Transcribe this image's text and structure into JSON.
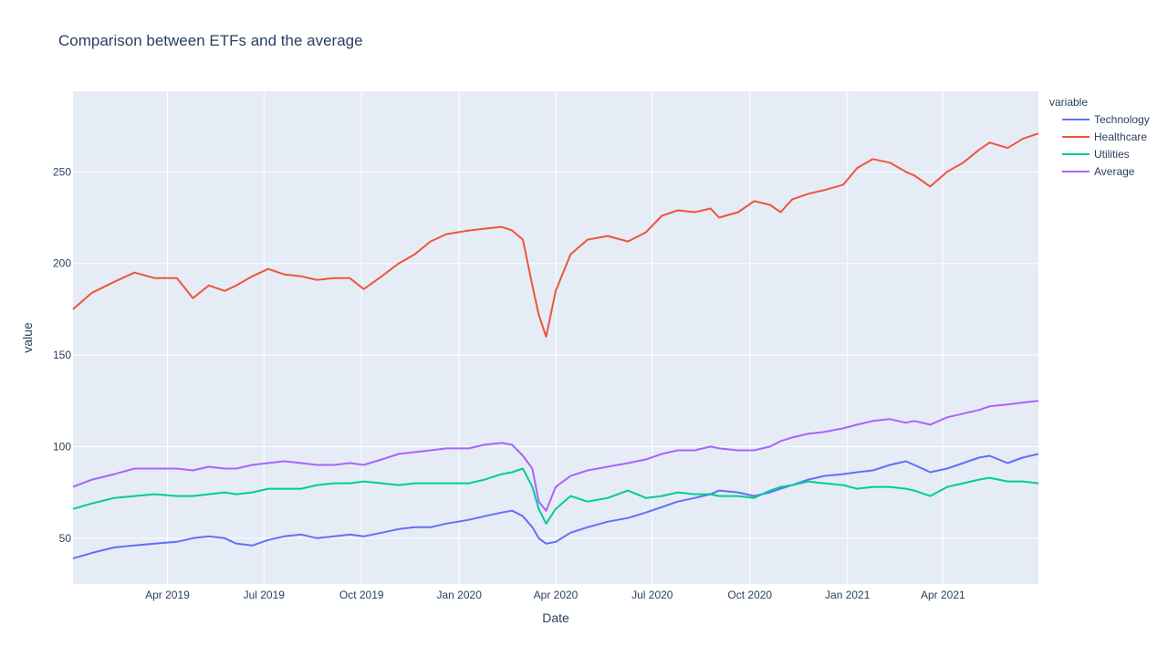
{
  "chart_data": {
    "type": "line",
    "title": "Comparison between ETFs and the average",
    "xlabel": "Date",
    "ylabel": "value",
    "legend_title": "variable",
    "legend_position": "right",
    "grid": true,
    "xlim": [
      "2019-01-02",
      "2021-06-30"
    ],
    "ylim": [
      25,
      294
    ],
    "x_ticks": [
      "Apr 2019",
      "Jul 2019",
      "Oct 2019",
      "Jan 2020",
      "Apr 2020",
      "Jul 2020",
      "Oct 2020",
      "Jan 2021",
      "Apr 2021"
    ],
    "x_tick_dates": [
      "2019-04-01",
      "2019-07-01",
      "2019-10-01",
      "2020-01-01",
      "2020-04-01",
      "2020-07-01",
      "2020-10-01",
      "2021-01-01",
      "2021-04-01"
    ],
    "y_ticks": [
      50,
      100,
      150,
      200,
      250
    ],
    "x": [
      "2019-01-02",
      "2019-01-20",
      "2019-02-10",
      "2019-03-01",
      "2019-03-20",
      "2019-04-10",
      "2019-04-25",
      "2019-05-10",
      "2019-05-25",
      "2019-06-05",
      "2019-06-20",
      "2019-07-05",
      "2019-07-20",
      "2019-08-05",
      "2019-08-20",
      "2019-09-05",
      "2019-09-20",
      "2019-10-03",
      "2019-10-20",
      "2019-11-05",
      "2019-11-20",
      "2019-12-05",
      "2019-12-20",
      "2020-01-10",
      "2020-01-25",
      "2020-02-10",
      "2020-02-20",
      "2020-03-01",
      "2020-03-10",
      "2020-03-16",
      "2020-03-23",
      "2020-04-01",
      "2020-04-15",
      "2020-05-01",
      "2020-05-20",
      "2020-06-08",
      "2020-06-25",
      "2020-07-10",
      "2020-07-25",
      "2020-08-10",
      "2020-08-25",
      "2020-09-02",
      "2020-09-20",
      "2020-10-05",
      "2020-10-20",
      "2020-10-30",
      "2020-11-10",
      "2020-11-25",
      "2020-12-10",
      "2020-12-28",
      "2021-01-10",
      "2021-01-25",
      "2021-02-10",
      "2021-02-25",
      "2021-03-05",
      "2021-03-20",
      "2021-04-05",
      "2021-04-20",
      "2021-05-05",
      "2021-05-15",
      "2021-06-01",
      "2021-06-15",
      "2021-06-30"
    ],
    "series": [
      {
        "name": "Technology",
        "color": "#636efa",
        "values": [
          39,
          42,
          45,
          46,
          47,
          48,
          50,
          51,
          50,
          47,
          46,
          49,
          51,
          52,
          50,
          51,
          52,
          51,
          53,
          55,
          56,
          56,
          58,
          60,
          62,
          64,
          65,
          62,
          56,
          50,
          47,
          48,
          53,
          56,
          59,
          61,
          64,
          67,
          70,
          72,
          74,
          76,
          75,
          73,
          75,
          77,
          79,
          82,
          84,
          85,
          86,
          87,
          90,
          92,
          90,
          86,
          88,
          91,
          94,
          95,
          91,
          94,
          96
        ]
      },
      {
        "name": "Healthcare",
        "color": "#ef553b",
        "values": [
          175,
          184,
          190,
          195,
          192,
          192,
          181,
          188,
          185,
          188,
          193,
          197,
          194,
          193,
          191,
          192,
          192,
          186,
          193,
          200,
          205,
          212,
          216,
          218,
          219,
          220,
          218,
          213,
          188,
          172,
          160,
          185,
          205,
          213,
          215,
          212,
          217,
          226,
          229,
          228,
          230,
          225,
          228,
          234,
          232,
          228,
          235,
          238,
          240,
          243,
          252,
          257,
          255,
          250,
          248,
          242,
          250,
          255,
          262,
          266,
          263,
          268,
          271
        ]
      },
      {
        "name": "Utilities",
        "color": "#00cc96",
        "values": [
          66,
          69,
          72,
          73,
          74,
          73,
          73,
          74,
          75,
          74,
          75,
          77,
          77,
          77,
          79,
          80,
          80,
          81,
          80,
          79,
          80,
          80,
          80,
          80,
          82,
          85,
          86,
          88,
          78,
          66,
          58,
          66,
          73,
          70,
          72,
          76,
          72,
          73,
          75,
          74,
          74,
          73,
          73,
          72,
          76,
          78,
          79,
          81,
          80,
          79,
          77,
          78,
          78,
          77,
          76,
          73,
          78,
          80,
          82,
          83,
          81,
          81,
          80
        ]
      },
      {
        "name": "Average",
        "color": "#ab63fa",
        "values": [
          78,
          82,
          85,
          88,
          88,
          88,
          87,
          89,
          88,
          88,
          90,
          91,
          92,
          91,
          90,
          90,
          91,
          90,
          93,
          96,
          97,
          98,
          99,
          99,
          101,
          102,
          101,
          95,
          88,
          70,
          65,
          78,
          84,
          87,
          89,
          91,
          93,
          96,
          98,
          98,
          100,
          99,
          98,
          98,
          100,
          103,
          105,
          107,
          108,
          110,
          112,
          114,
          115,
          113,
          114,
          112,
          116,
          118,
          120,
          122,
          123,
          124,
          125
        ]
      }
    ]
  }
}
